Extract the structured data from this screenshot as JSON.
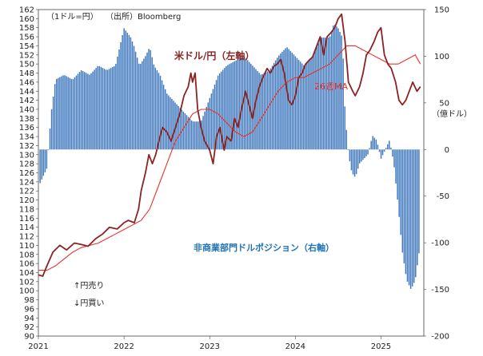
{
  "chart_data": {
    "type": "bar",
    "notes": {
      "unit_left": "（1ドル=円）",
      "source": "（出所）Bloomberg",
      "unit_right": "（億ドル）"
    },
    "labels": {
      "usd_jpy": "米ドル/円（左軸）",
      "ma": "26週MA",
      "position": "非商業部門ドルポジション（右軸）",
      "yen_sell": "↑円売り",
      "yen_buy": "↓円買い"
    },
    "colors": {
      "usd_jpy": "#8b2323",
      "ma": "#e8322e",
      "bars": "#3f78bd",
      "position_label": "#1f74b8"
    },
    "x_ticks": [
      "2021",
      "2022",
      "2023",
      "2024",
      "2025"
    ],
    "y_left": {
      "min": 90,
      "max": 162,
      "step": 2
    },
    "y_right": {
      "min": -200,
      "max": 150,
      "ticks": [
        150,
        100,
        50,
        0,
        -50,
        -100,
        -150,
        -200
      ]
    },
    "usd_jpy": {
      "x": [
        2021.0,
        2021.05,
        2021.1,
        2021.17,
        2021.25,
        2021.33,
        2021.42,
        2021.5,
        2021.58,
        2021.67,
        2021.75,
        2021.83,
        2021.92,
        2022.0,
        2022.05,
        2022.12,
        2022.17,
        2022.2,
        2022.25,
        2022.29,
        2022.33,
        2022.37,
        2022.42,
        2022.45,
        2022.5,
        2022.55,
        2022.6,
        2022.65,
        2022.7,
        2022.75,
        2022.78,
        2022.8,
        2022.83,
        2022.86,
        2022.9,
        2022.94,
        2022.97,
        2023.0,
        2023.04,
        2023.08,
        2023.12,
        2023.17,
        2023.2,
        2023.25,
        2023.29,
        2023.33,
        2023.37,
        2023.42,
        2023.46,
        2023.5,
        2023.54,
        2023.58,
        2023.62,
        2023.67,
        2023.71,
        2023.75,
        2023.79,
        2023.83,
        2023.87,
        2023.92,
        2023.96,
        2024.0,
        2024.04,
        2024.08,
        2024.12,
        2024.17,
        2024.2,
        2024.25,
        2024.29,
        2024.33,
        2024.37,
        2024.42,
        2024.46,
        2024.5,
        2024.54,
        2024.58,
        2024.62,
        2024.67,
        2024.7,
        2024.75,
        2024.79,
        2024.83,
        2024.87,
        2024.92,
        2024.96,
        2025.0,
        2025.04,
        2025.08,
        2025.12,
        2025.17,
        2025.21,
        2025.25,
        2025.29,
        2025.33,
        2025.37,
        2025.42,
        2025.46
      ],
      "y": [
        103.5,
        103.2,
        105.5,
        108.5,
        110,
        109,
        110.5,
        110.2,
        109.8,
        111.5,
        112.5,
        114,
        113.6,
        115,
        115.5,
        115,
        118,
        122,
        126,
        130,
        128,
        130,
        134,
        136,
        135,
        133,
        136,
        139,
        143,
        145,
        148,
        146,
        148,
        140,
        136,
        133,
        132,
        131,
        128,
        134,
        136,
        131,
        134,
        133,
        138,
        136,
        140,
        144,
        141,
        138,
        142,
        145,
        147,
        149,
        148,
        149.5,
        150,
        151,
        148,
        142,
        141,
        143,
        147,
        148,
        150,
        151,
        151.5,
        154,
        156,
        152,
        156,
        157,
        158,
        160,
        161,
        155,
        146,
        144,
        143,
        145,
        148,
        152,
        153,
        155,
        157,
        158,
        152,
        150,
        149,
        146,
        142,
        141,
        142,
        144,
        146,
        144,
        145
      ]
    },
    "ma_26w": {
      "x": [
        2021.0,
        2021.1,
        2021.2,
        2021.3,
        2021.4,
        2021.5,
        2021.6,
        2021.7,
        2021.8,
        2021.9,
        2022.0,
        2022.1,
        2022.2,
        2022.3,
        2022.4,
        2022.5,
        2022.6,
        2022.7,
        2022.8,
        2022.9,
        2023.0,
        2023.1,
        2023.2,
        2023.3,
        2023.4,
        2023.5,
        2023.6,
        2023.7,
        2023.8,
        2023.9,
        2024.0,
        2024.1,
        2024.2,
        2024.3,
        2024.4,
        2024.5,
        2024.6,
        2024.7,
        2024.8,
        2024.9,
        2025.0,
        2025.1,
        2025.2,
        2025.3,
        2025.4,
        2025.46
      ],
      "y": [
        104.5,
        104.5,
        105.5,
        107,
        108.5,
        109.5,
        110,
        110.5,
        111.5,
        112.5,
        113.5,
        114.5,
        115.5,
        118,
        123,
        128,
        133,
        136,
        139,
        140,
        140,
        139,
        137,
        135,
        134,
        135,
        138,
        141,
        144,
        146,
        147,
        147,
        148,
        149,
        150,
        152,
        154,
        154,
        153,
        152,
        151,
        150,
        150,
        151,
        152,
        150
      ]
    },
    "position": {
      "x": [
        2021.0,
        2021.1,
        2021.15,
        2021.2,
        2021.3,
        2021.4,
        2021.5,
        2021.6,
        2021.7,
        2021.8,
        2021.9,
        2022.0,
        2022.08,
        2022.12,
        2022.18,
        2022.25,
        2022.3,
        2022.35,
        2022.42,
        2022.5,
        2022.6,
        2022.7,
        2022.8,
        2022.9,
        2023.0,
        2023.1,
        2023.2,
        2023.3,
        2023.4,
        2023.5,
        2023.6,
        2023.7,
        2023.8,
        2023.9,
        2024.0,
        2024.1,
        2024.2,
        2024.3,
        2024.4,
        2024.45,
        2024.5,
        2024.55,
        2024.58,
        2024.62,
        2024.66,
        2024.7,
        2024.75,
        2024.8,
        2024.85,
        2024.9,
        2024.95,
        2025.0,
        2025.05,
        2025.1,
        2025.15,
        2025.2,
        2025.25,
        2025.3,
        2025.35,
        2025.4,
        2025.46
      ],
      "y": [
        -40,
        -20,
        40,
        75,
        80,
        75,
        85,
        80,
        90,
        85,
        90,
        130,
        120,
        110,
        90,
        100,
        110,
        90,
        80,
        60,
        50,
        40,
        30,
        30,
        55,
        80,
        90,
        95,
        100,
        90,
        80,
        85,
        100,
        110,
        100,
        90,
        100,
        120,
        120,
        135,
        130,
        120,
        40,
        -5,
        -25,
        -30,
        -15,
        -10,
        -5,
        15,
        10,
        -10,
        0,
        10,
        -15,
        -60,
        -110,
        -140,
        -150,
        -140,
        -100
      ]
    }
  }
}
